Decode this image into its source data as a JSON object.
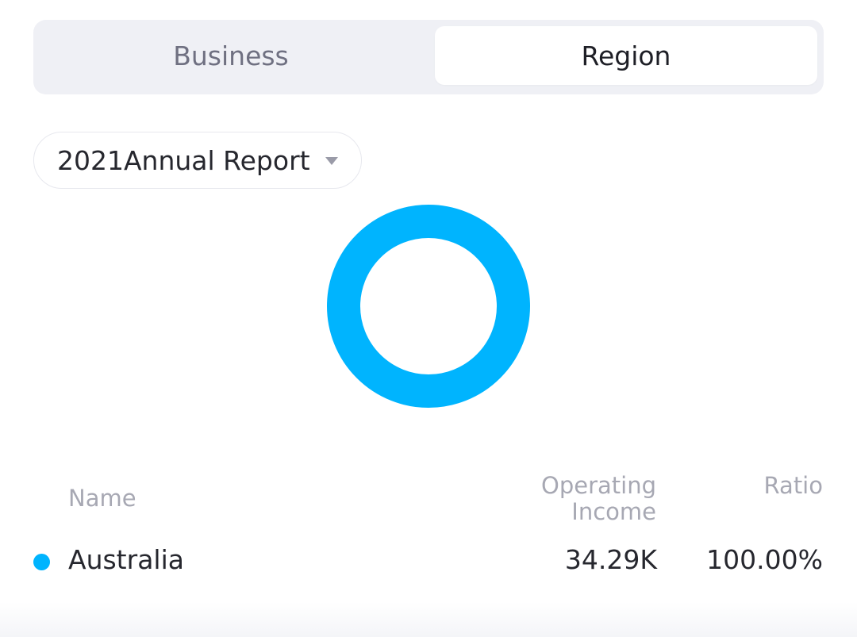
{
  "tabs": {
    "business_label": "Business",
    "region_label": "Region",
    "active": "Region"
  },
  "report_selector": {
    "selected": "2021Annual Report",
    "icon": "caret-down-icon"
  },
  "table": {
    "columns": {
      "name": "Name",
      "income_line1": "Operating",
      "income_line2": "Income",
      "ratio": "Ratio"
    },
    "rows": [
      {
        "name": "Australia",
        "income": "34.29K",
        "ratio": "100.00%",
        "color": "#00b4fe"
      }
    ]
  },
  "chart_data": {
    "type": "pie",
    "categories": [
      "Australia"
    ],
    "values": [
      100.0
    ],
    "colors": [
      "#00b4fe"
    ]
  }
}
